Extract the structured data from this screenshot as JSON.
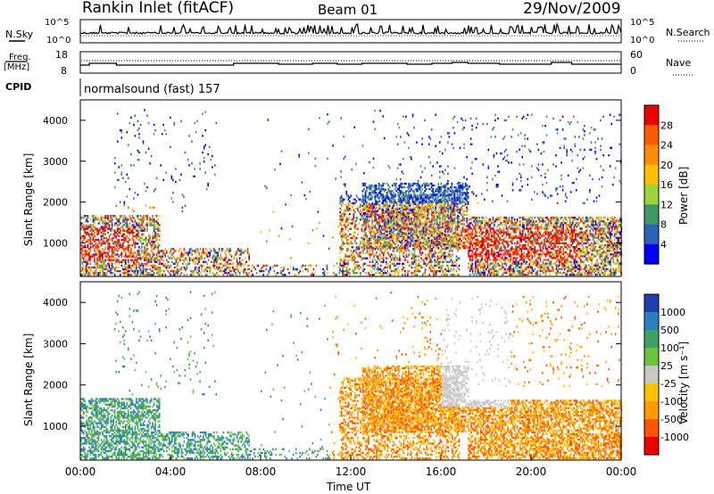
{
  "header": {
    "station": "Rankin Inlet (fitACF)",
    "beam": "Beam 01",
    "date": "29/Nov/2009"
  },
  "noise_panel": {
    "left_label": "N.Sky",
    "right_label": "N.Search",
    "ticks_left": [
      "10^5",
      "10^0"
    ],
    "ticks_right": [
      "10^5",
      "10^0"
    ]
  },
  "freq_panel": {
    "left_label_1": "Freq.",
    "left_label_2": "[MHz]",
    "right_label": "Nave",
    "ticks_left": [
      "18",
      "8"
    ],
    "ticks_right": [
      "60",
      "0"
    ]
  },
  "cpid_panel": {
    "label": "CPID",
    "value": "normalsound (fast) 157"
  },
  "chart_data": [
    {
      "type": "heatmap",
      "name": "power",
      "ylabel": "Slant Range [km]",
      "ylim": [
        180,
        4500
      ],
      "yticks": [
        1000,
        2000,
        3000,
        4000
      ],
      "xlim": [
        0,
        24
      ],
      "colorbar": {
        "label": "Power [dB]",
        "ticks": [
          "28",
          "24",
          "20",
          "16",
          "12",
          "8",
          "4"
        ],
        "colors": [
          "#ee0000",
          "#ff5a00",
          "#ff8c00",
          "#ffc000",
          "#9ad63a",
          "#3f9a62",
          "#2a64b8",
          "#0000ff"
        ]
      }
    },
    {
      "type": "heatmap",
      "name": "velocity",
      "ylabel": "Slant Range [km]",
      "ylim": [
        180,
        4500
      ],
      "yticks": [
        1000,
        2000,
        3000,
        4000
      ],
      "xlim": [
        0,
        24
      ],
      "xticks": [
        "00:00",
        "04:00",
        "08:00",
        "12:00",
        "16:00",
        "20:00",
        "00:00"
      ],
      "xlabel": "Time UT",
      "colorbar": {
        "label": "Velocity [m s⁻¹]",
        "ticks": [
          "1000",
          "500",
          "100",
          "25",
          "-25",
          "-100",
          "-500",
          "-1000"
        ],
        "colors": [
          "#1e3fb0",
          "#2a7fbf",
          "#3fa063",
          "#6ac33d",
          "#c8c8c8",
          "#ffc000",
          "#ff9a00",
          "#ff5500",
          "#ee0000"
        ]
      }
    }
  ]
}
